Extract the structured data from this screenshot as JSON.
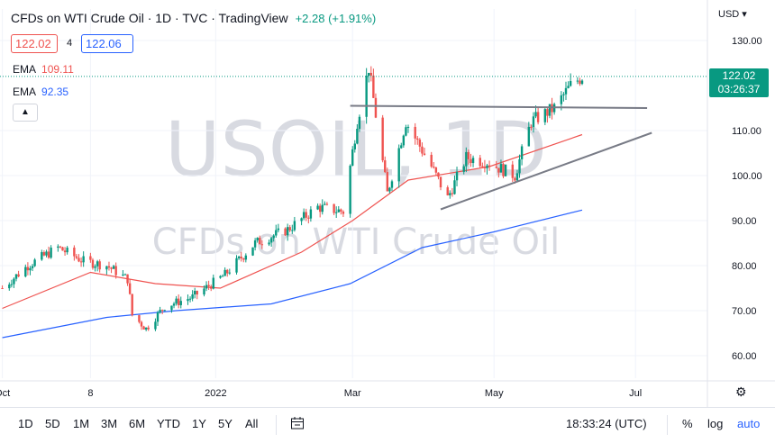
{
  "header": {
    "title": "CFDs on WTI Crude Oil · 1D · TVC · TradingView",
    "change": "+2.28 (+1.91%)",
    "currency": "USD"
  },
  "quote": {
    "sell": "122.02",
    "spread": "4",
    "buy": "122.06"
  },
  "indicators": [
    {
      "name": "EMA",
      "value": "109.11",
      "color": "#ef5350"
    },
    {
      "name": "EMA",
      "value": "92.35",
      "color": "#2962ff"
    }
  ],
  "collapse_icon": "chevron-up-icon",
  "watermark": {
    "symbol": "USOIL, 1D",
    "description": "CFDs on WTI Crude Oil"
  },
  "last_price": {
    "price": "122.02",
    "countdown": "03:26:37",
    "color": "#089981"
  },
  "toolbar": {
    "ranges": [
      "1D",
      "5D",
      "1M",
      "3M",
      "6M",
      "YTD",
      "1Y",
      "5Y",
      "All"
    ],
    "compare_icon": "calendar-range-icon",
    "time": "18:33:24 (UTC)",
    "percent": "%",
    "log": "log",
    "auto": "auto"
  },
  "settings_icon": "gear-icon",
  "chart_data": {
    "type": "candlestick",
    "y_tick_labels": [
      "130.00",
      "110.00",
      "100.00",
      "90.00",
      "80.00",
      "70.00",
      "60.00"
    ],
    "x_tick_labels": [
      "Oct",
      "8",
      "2022",
      "Mar",
      "May",
      "Jul"
    ],
    "ylim": [
      55,
      133
    ],
    "colors": {
      "up": "#089981",
      "down": "#ef5350"
    },
    "price_path": [
      {
        "date": "2021-10-01",
        "close": 75
      },
      {
        "date": "2021-10-12",
        "close": 80
      },
      {
        "date": "2021-10-25",
        "close": 84
      },
      {
        "date": "2021-11-05",
        "close": 81
      },
      {
        "date": "2021-11-15",
        "close": 80
      },
      {
        "date": "2021-11-24",
        "close": 77
      },
      {
        "date": "2021-11-26",
        "close": 69
      },
      {
        "date": "2021-12-02",
        "close": 66
      },
      {
        "date": "2021-12-10",
        "close": 71
      },
      {
        "date": "2021-12-22",
        "close": 73
      },
      {
        "date": "2022-01-05",
        "close": 78
      },
      {
        "date": "2022-01-18",
        "close": 85
      },
      {
        "date": "2022-02-01",
        "close": 88
      },
      {
        "date": "2022-02-14",
        "close": 93
      },
      {
        "date": "2022-02-25",
        "close": 92
      },
      {
        "date": "2022-03-03",
        "close": 112
      },
      {
        "date": "2022-03-08",
        "close": 124
      },
      {
        "date": "2022-03-16",
        "close": 96
      },
      {
        "date": "2022-03-24",
        "close": 112
      },
      {
        "date": "2022-04-04",
        "close": 102
      },
      {
        "date": "2022-04-11",
        "close": 95
      },
      {
        "date": "2022-04-19",
        "close": 104
      },
      {
        "date": "2022-04-28",
        "close": 103
      },
      {
        "date": "2022-05-10",
        "close": 100
      },
      {
        "date": "2022-05-17",
        "close": 112
      },
      {
        "date": "2022-05-27",
        "close": 115
      },
      {
        "date": "2022-06-03",
        "close": 120
      },
      {
        "date": "2022-06-08",
        "close": 122
      }
    ],
    "ema_fast": [
      {
        "date": "2021-10-01",
        "value": 70.5
      },
      {
        "date": "2021-11-08",
        "value": 78.5
      },
      {
        "date": "2021-12-06",
        "value": 76
      },
      {
        "date": "2022-01-03",
        "value": 75
      },
      {
        "date": "2022-02-07",
        "value": 83
      },
      {
        "date": "2022-03-01",
        "value": 90
      },
      {
        "date": "2022-03-25",
        "value": 99
      },
      {
        "date": "2022-04-29",
        "value": 102
      },
      {
        "date": "2022-06-08",
        "value": 109.11
      }
    ],
    "ema_slow": [
      {
        "date": "2021-10-01",
        "value": 64
      },
      {
        "date": "2021-11-15",
        "value": 68.5
      },
      {
        "date": "2021-12-15",
        "value": 70
      },
      {
        "date": "2022-01-25",
        "value": 71.5
      },
      {
        "date": "2022-02-28",
        "value": 76
      },
      {
        "date": "2022-03-31",
        "value": 84
      },
      {
        "date": "2022-05-01",
        "value": 87.5
      },
      {
        "date": "2022-06-08",
        "value": 92.35
      }
    ],
    "drawings": [
      {
        "kind": "horizontal-resistance",
        "from": {
          "date": "2022-02-28",
          "price": 115.5
        },
        "to": {
          "date": "2022-07-06",
          "price": 115
        },
        "color": "#787b86"
      },
      {
        "kind": "ascending-support",
        "from": {
          "date": "2022-04-08",
          "price": 92.5
        },
        "to": {
          "date": "2022-07-08",
          "price": 109.5
        },
        "color": "#787b86"
      }
    ]
  }
}
